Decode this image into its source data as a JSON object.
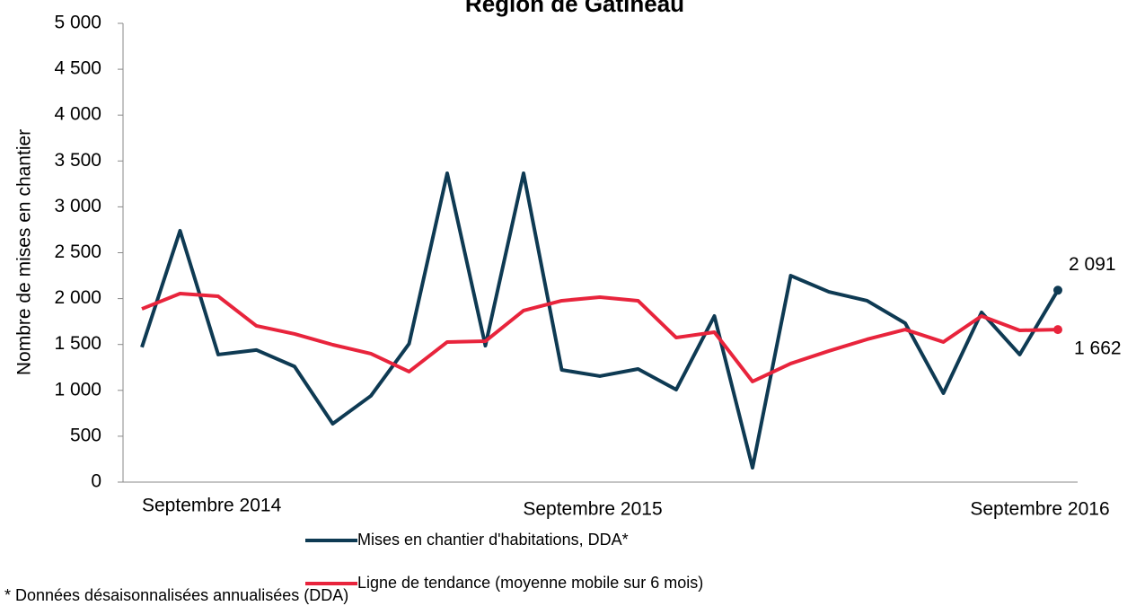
{
  "chart_data": {
    "type": "line",
    "title": "Région de Gatineau",
    "y_label": "Nombre de mises en chantier",
    "footnote": "* Données désaisonnalisées  annualisées  (DDA)",
    "categories": [
      "Septembre 2014",
      null,
      null,
      null,
      null,
      null,
      null,
      null,
      null,
      null,
      null,
      null,
      "Septembre 2015",
      null,
      null,
      null,
      null,
      null,
      null,
      null,
      null,
      null,
      null,
      null,
      "Septembre 2016"
    ],
    "series": [
      {
        "name": "Mises en chantier d'habitations, DDA*",
        "color": "#0e3a53",
        "values": [
          1470,
          2740,
          1390,
          1440,
          1260,
          636,
          940,
          1507,
          3366,
          1487,
          3366,
          1223,
          1155,
          1233,
          1008,
          1810,
          157,
          2250,
          2074,
          1977,
          1732,
          969,
          1850,
          1390,
          2091
        ],
        "value_labels": [
          null,
          null,
          null,
          null,
          null,
          null,
          null,
          null,
          null,
          null,
          null,
          null,
          null,
          null,
          null,
          null,
          null,
          null,
          null,
          null,
          null,
          null,
          null,
          null,
          "2 091"
        ]
      },
      {
        "name": "Ligne de tendance (moyenne mobile sur 6 mois)",
        "color": "#e8243c",
        "values": [
          1888,
          2055,
          2025,
          1703,
          1615,
          1497,
          1400,
          1204,
          1527,
          1536,
          1869,
          1977,
          2016,
          1977,
          1575,
          1634,
          1096,
          1292,
          1429,
          1556,
          1663,
          1527,
          1810,
          1654,
          1662
        ],
        "value_labels": [
          null,
          null,
          null,
          null,
          null,
          null,
          null,
          null,
          null,
          null,
          null,
          null,
          null,
          null,
          null,
          null,
          null,
          null,
          null,
          null,
          null,
          null,
          null,
          null,
          "1 662"
        ]
      }
    ],
    "ylim": [
      0,
      5000
    ],
    "yticks": [
      0,
      500,
      {
        "value": 1000,
        "label": "1 000"
      },
      {
        "value": 1500,
        "label": "1 500"
      },
      {
        "value": 2000,
        "label": "2 000"
      },
      {
        "value": 2500,
        "label": "2 500"
      },
      {
        "value": 3000,
        "label": "3 000"
      },
      {
        "value": 3500,
        "label": "3 500"
      },
      {
        "value": 4000,
        "label": "4 000"
      },
      {
        "value": 4500,
        "label": "4 500"
      },
      {
        "value": 5000,
        "label": "5 000"
      }
    ],
    "grid": false
  }
}
